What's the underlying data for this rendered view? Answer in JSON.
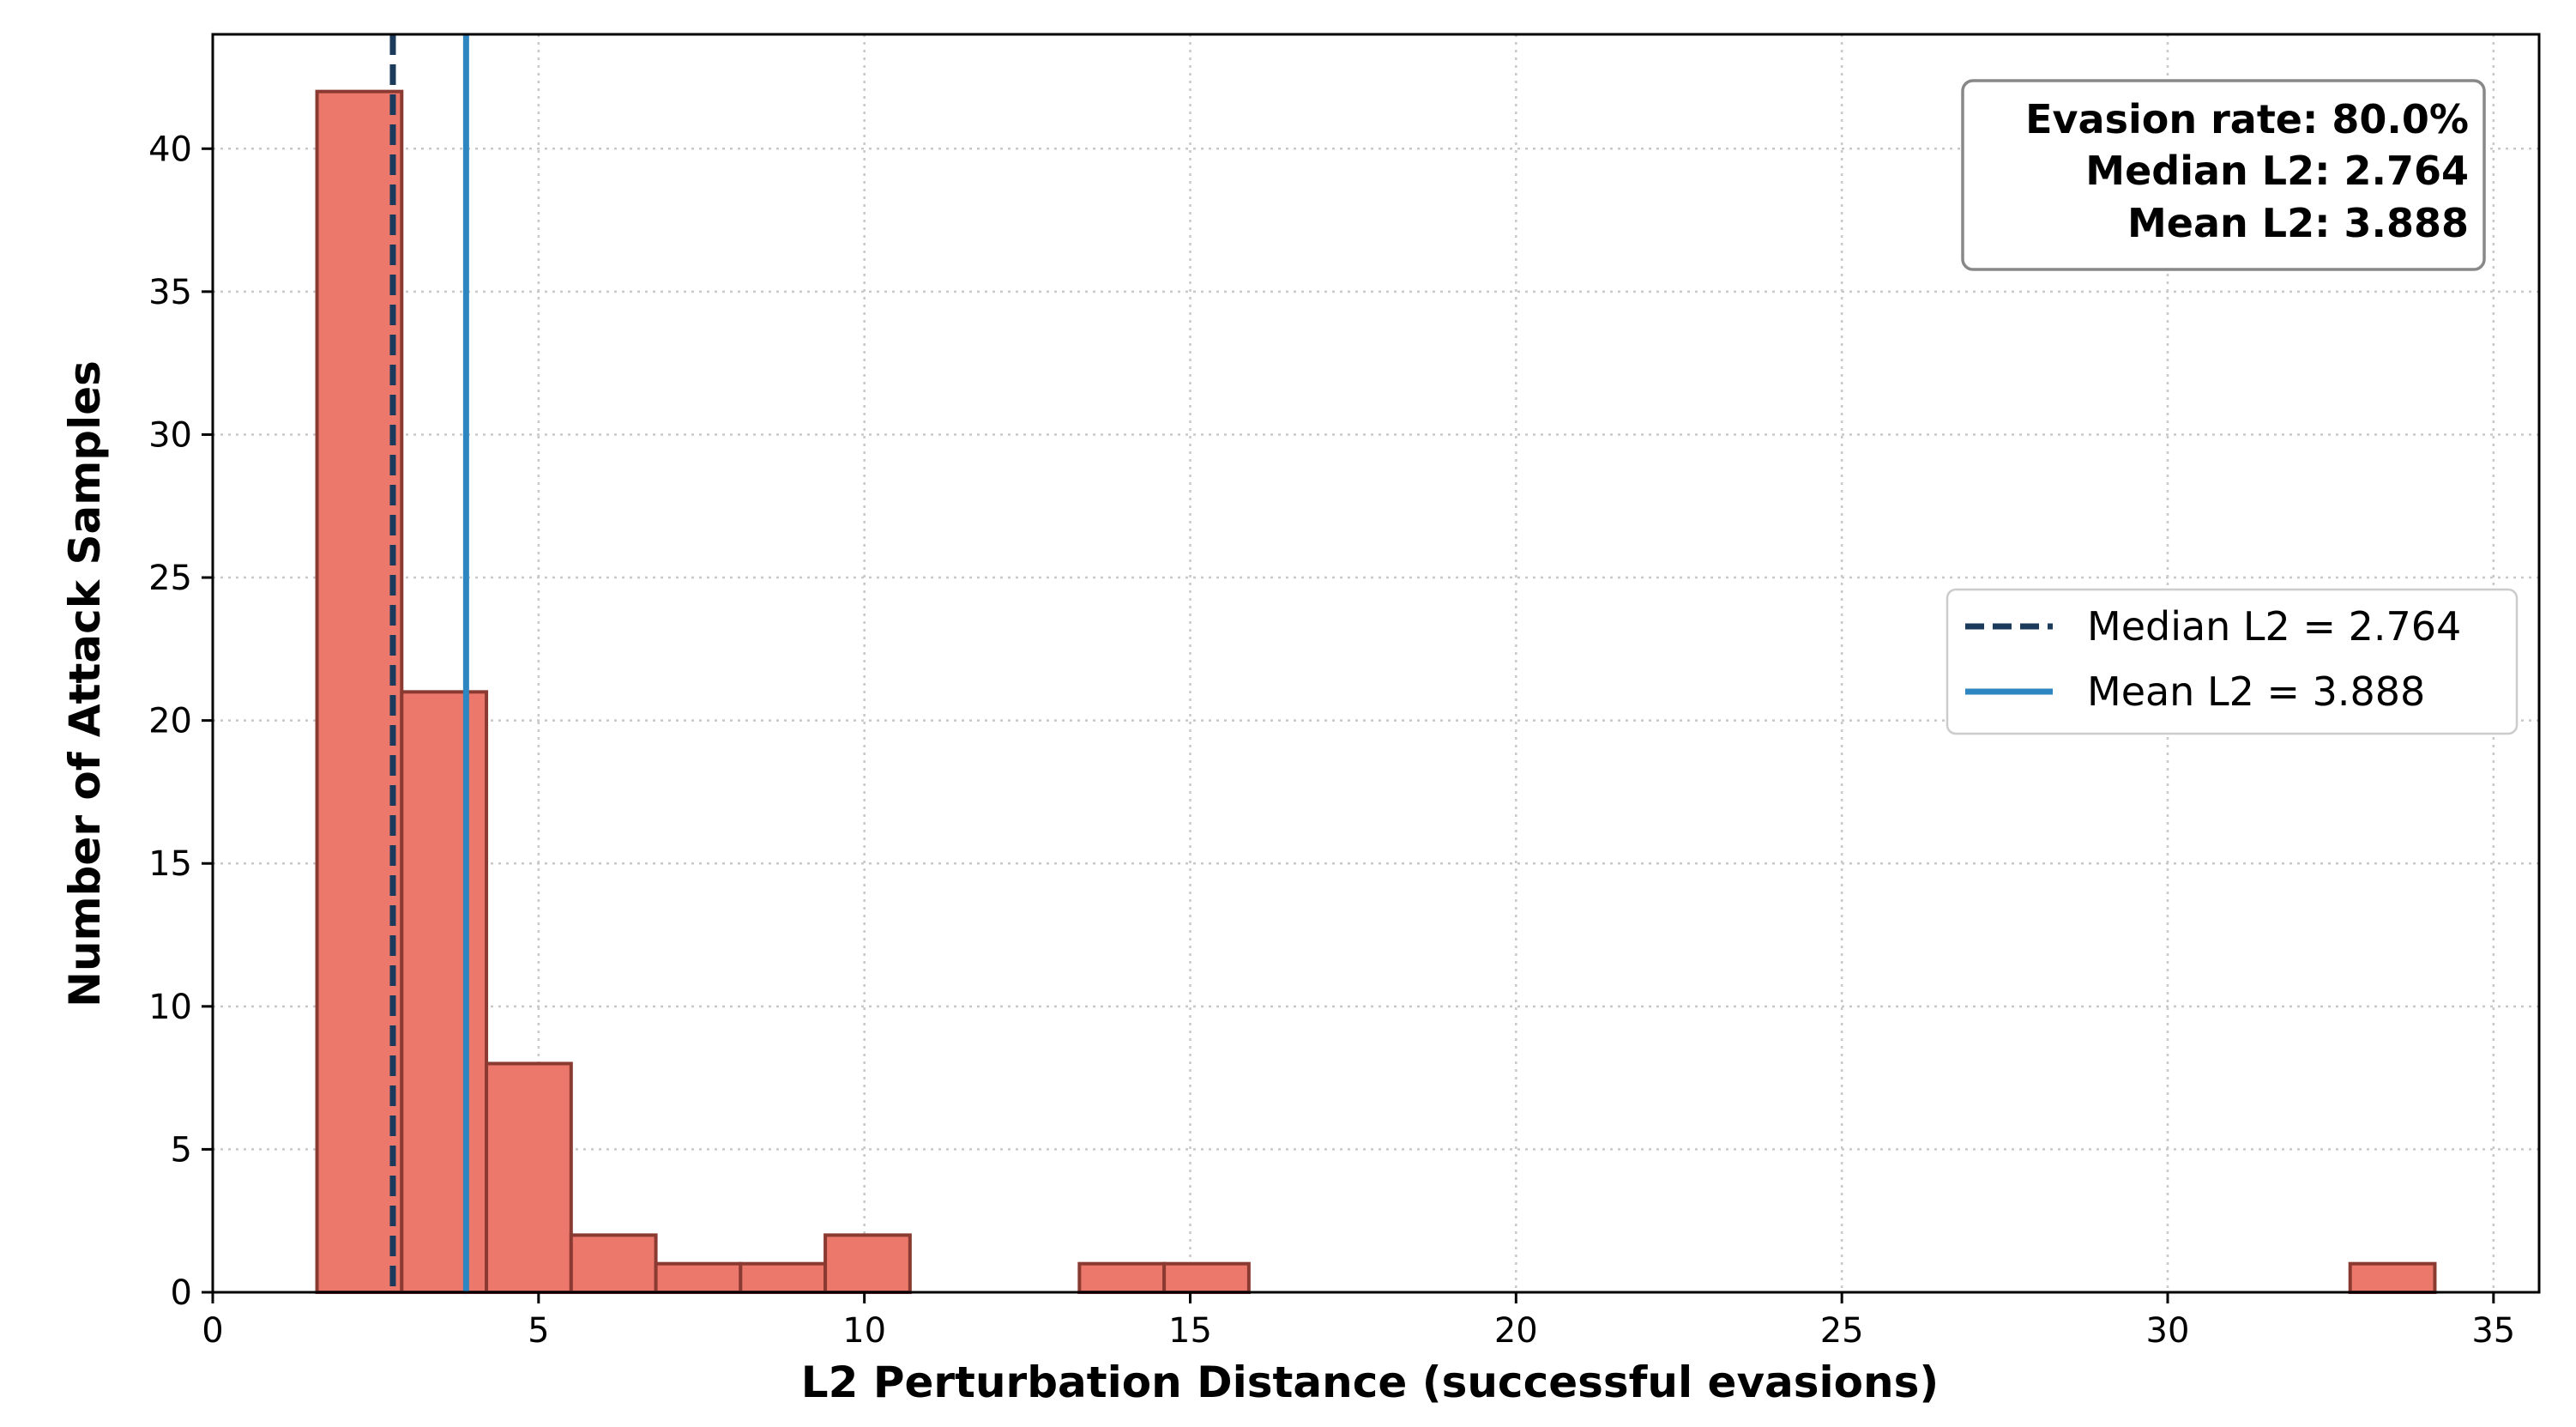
{
  "chart_data": {
    "type": "bar",
    "subtype": "histogram",
    "xlabel": "L2 Perturbation Distance (successful evasions)",
    "ylabel": "Number of Attack Samples",
    "xlim": [
      0,
      35.7
    ],
    "ylim": [
      0,
      44
    ],
    "xticks": [
      0,
      5,
      10,
      15,
      20,
      25,
      30,
      35
    ],
    "yticks": [
      0,
      5,
      10,
      15,
      20,
      25,
      30,
      35,
      40
    ],
    "grid": true,
    "bar_color": "#ec786c",
    "bar_edge_color": "#8b3a32",
    "bins": [
      {
        "x0": 1.6,
        "x1": 2.9,
        "count": 42
      },
      {
        "x0": 2.9,
        "x1": 4.2,
        "count": 21
      },
      {
        "x0": 4.2,
        "x1": 5.5,
        "count": 8
      },
      {
        "x0": 5.5,
        "x1": 6.8,
        "count": 2
      },
      {
        "x0": 6.8,
        "x1": 8.1,
        "count": 1
      },
      {
        "x0": 8.1,
        "x1": 9.4,
        "count": 1
      },
      {
        "x0": 9.4,
        "x1": 10.7,
        "count": 2
      },
      {
        "x0": 13.3,
        "x1": 14.6,
        "count": 1
      },
      {
        "x0": 14.6,
        "x1": 15.9,
        "count": 1
      },
      {
        "x0": 32.8,
        "x1": 34.1,
        "count": 1
      }
    ],
    "median_line": {
      "value": 2.764,
      "label": "Median L2 = 2.764",
      "color": "#1b3a5c",
      "style": "dashed"
    },
    "mean_line": {
      "value": 3.888,
      "label": "Mean L2 = 3.888",
      "color": "#2e86c1",
      "style": "solid"
    },
    "stats_box": {
      "lines": [
        "Evasion rate: 80.0%",
        "Median L2: 2.764",
        "Mean L2: 3.888"
      ],
      "placement": "top-right"
    },
    "legend_placement": "center-right"
  }
}
